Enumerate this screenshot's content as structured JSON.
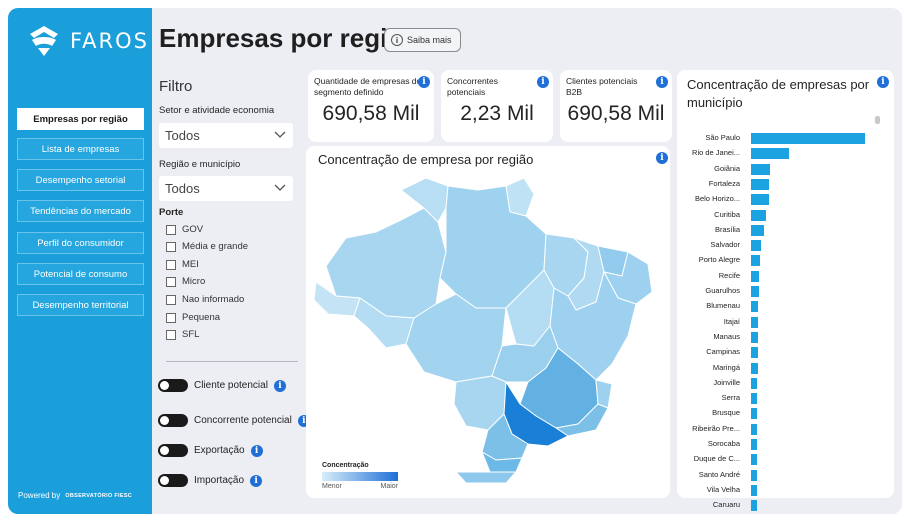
{
  "sidebar": {
    "logo_text": "FAROS",
    "items": [
      {
        "label": "Empresas por região",
        "active": true
      },
      {
        "label": "Lista de empresas",
        "active": false
      },
      {
        "label": "Desempenho setorial",
        "active": false
      },
      {
        "label": "Tendências do mercado",
        "active": false
      },
      {
        "label": "Perfil do consumidor",
        "active": false
      },
      {
        "label": "Potencial de consumo",
        "active": false
      },
      {
        "label": "Desempenho territorial",
        "active": false
      }
    ],
    "powered_by": "Powered by",
    "powered_logo": "OBSERVATÓRIO FIESC"
  },
  "header": {
    "title": "Empresas por região",
    "saiba_mais": "Saiba mais"
  },
  "filters": {
    "title": "Filtro",
    "setor_label": "Setor e atividade economia",
    "setor_value": "Todos",
    "regiao_label": "Região e município",
    "regiao_value": "Todos",
    "porte_label": "Porte",
    "porte_options": [
      "GOV",
      "Média e grande",
      "MEI",
      "Micro",
      "Nao informado",
      "Pequena",
      "SFL"
    ],
    "toggles": [
      "Cliente potencial",
      "Concorrente potencial",
      "Exportação",
      "Importação"
    ]
  },
  "kpis": [
    {
      "label": "Quantidade de empresas do segmento definido",
      "value": "690,58 Mil"
    },
    {
      "label": "Concorrentes potenciais",
      "value": "2,23 Mil"
    },
    {
      "label": "Clientes potenciais B2B",
      "value": "690,58 Mil"
    }
  ],
  "map": {
    "title": "Concentração de empresa por região",
    "legend_title": "Concentração",
    "legend_min": "Menor",
    "legend_max": "Maior",
    "scale_colors": {
      "low": "#d6eefa",
      "high": "#1f6fd6"
    }
  },
  "chart_data": {
    "type": "bar",
    "orientation": "horizontal",
    "title": "Concentração de empresas por município",
    "categories": [
      "São Paulo",
      "Rio de Janei...",
      "Goiânia",
      "Fortaleza",
      "Belo Horizo...",
      "Curitiba",
      "Brasília",
      "Salvador",
      "Porto Alegre",
      "Recife",
      "Guarulhos",
      "Blumenau",
      "Itajaí",
      "Manaus",
      "Campinas",
      "Maringá",
      "Joinville",
      "Serra",
      "Brusque",
      "Ribeirão Pre...",
      "Sorocaba",
      "Duque de C...",
      "Santo André",
      "Vila Velha",
      "Caruaru"
    ],
    "values": [
      100,
      33,
      17,
      16,
      16,
      13,
      11,
      9,
      8,
      7,
      7,
      6,
      6,
      6,
      6,
      6,
      5,
      5,
      5,
      5,
      5,
      5,
      5,
      5,
      5
    ],
    "bar_color": "#1aa3e0"
  }
}
